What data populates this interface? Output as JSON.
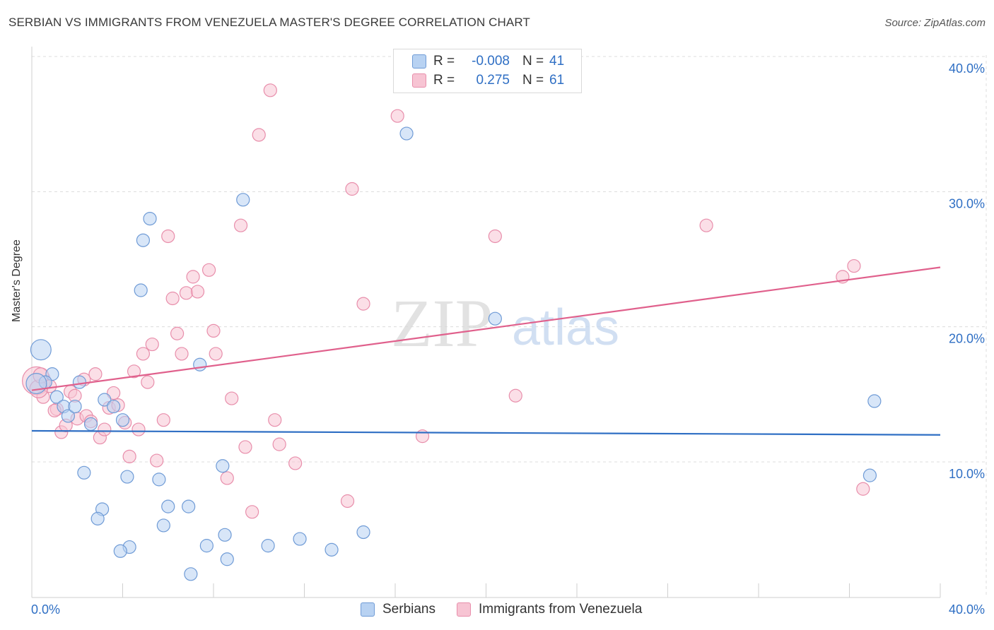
{
  "header": {
    "title": "SERBIAN VS IMMIGRANTS FROM VENEZUELA MASTER'S DEGREE CORRELATION CHART",
    "source": "Source: ZipAtlas.com"
  },
  "legend": {
    "rows": [
      {
        "r_label": "R =",
        "r_value": "-0.008",
        "n_label": "N =",
        "n_value": "41"
      },
      {
        "r_label": "R =",
        "r_value": "0.275",
        "n_label": "N =",
        "n_value": "61"
      }
    ]
  },
  "bottom_legend": {
    "series1": "Serbians",
    "series2": "Immigrants from Venezuela"
  },
  "watermark": {
    "zip": "ZIP",
    "atlas": "atlas"
  },
  "colors": {
    "blue_fill": "#b8d2f2",
    "blue_stroke": "#6f9bd6",
    "blue_line": "#2f6fc4",
    "pink_fill": "#f7c4d3",
    "pink_stroke": "#e88eab",
    "pink_line": "#e0608c",
    "tick_text": "#2f6fc4",
    "grid": "#dcdcdc"
  },
  "chart_data": {
    "type": "scatter",
    "title": "SERBIAN VS IMMIGRANTS FROM VENEZUELA MASTER'S DEGREE CORRELATION CHART",
    "xlabel": "",
    "ylabel": "Master's Degree",
    "xlim": [
      0,
      40
    ],
    "ylim": [
      0,
      40
    ],
    "x_tick_labels": [
      "0.0%",
      "40.0%"
    ],
    "y_ticks": [
      10,
      20,
      30,
      40
    ],
    "y_tick_labels": [
      "10.0%",
      "20.0%",
      "30.0%",
      "40.0%"
    ],
    "grid": true,
    "legend_position": "top-center",
    "series": [
      {
        "name": "Serbians",
        "color": "blue",
        "trend": {
          "x": [
            0,
            40
          ],
          "y": [
            12.3,
            12.0
          ]
        },
        "points": [
          [
            0.4,
            18.3,
            1.6
          ],
          [
            0.9,
            16.5,
            1
          ],
          [
            0.6,
            15.9,
            1
          ],
          [
            1.1,
            14.8,
            1
          ],
          [
            1.4,
            14.1,
            1
          ],
          [
            1.6,
            13.4,
            1
          ],
          [
            1.9,
            14.1,
            1
          ],
          [
            2.1,
            15.9,
            1
          ],
          [
            2.6,
            12.8,
            1
          ],
          [
            3.2,
            14.6,
            1
          ],
          [
            3.6,
            14.1,
            1
          ],
          [
            4.0,
            13.1,
            1
          ],
          [
            2.3,
            9.2,
            1
          ],
          [
            4.2,
            8.9,
            1
          ],
          [
            5.6,
            8.7,
            1
          ],
          [
            3.1,
            6.5,
            1
          ],
          [
            2.9,
            5.8,
            1
          ],
          [
            6.0,
            6.7,
            1
          ],
          [
            5.8,
            5.3,
            1
          ],
          [
            4.3,
            3.7,
            1
          ],
          [
            3.9,
            3.4,
            1
          ],
          [
            6.9,
            6.7,
            1
          ],
          [
            7.7,
            3.8,
            1
          ],
          [
            8.5,
            4.6,
            1
          ],
          [
            8.6,
            2.8,
            1
          ],
          [
            7.0,
            1.7,
            1
          ],
          [
            10.4,
            3.8,
            1
          ],
          [
            11.8,
            4.3,
            1
          ],
          [
            13.2,
            3.5,
            1
          ],
          [
            14.6,
            4.8,
            1
          ],
          [
            8.4,
            9.7,
            1
          ],
          [
            7.4,
            17.2,
            1
          ],
          [
            4.8,
            22.7,
            1
          ],
          [
            4.9,
            26.4,
            1
          ],
          [
            5.2,
            28.0,
            1
          ],
          [
            9.3,
            29.4,
            1
          ],
          [
            16.5,
            34.3,
            1
          ],
          [
            20.4,
            20.6,
            1
          ],
          [
            37.1,
            14.5,
            1
          ],
          [
            36.9,
            9.0,
            1
          ],
          [
            0.2,
            15.8,
            1.6
          ]
        ]
      },
      {
        "name": "Immigrants from Venezuela",
        "color": "pink",
        "trend": {
          "x": [
            0,
            40
          ],
          "y": [
            15.3,
            24.4
          ]
        },
        "points": [
          [
            0.2,
            16.0,
            2.2
          ],
          [
            0.5,
            14.8,
            1
          ],
          [
            0.8,
            15.6,
            1
          ],
          [
            1.1,
            13.9,
            1
          ],
          [
            1.3,
            12.2,
            1
          ],
          [
            1.5,
            12.7,
            1
          ],
          [
            1.7,
            15.2,
            1
          ],
          [
            1.9,
            14.9,
            1
          ],
          [
            2.0,
            13.2,
            1
          ],
          [
            2.3,
            16.1,
            1
          ],
          [
            2.4,
            13.4,
            1
          ],
          [
            2.6,
            13.0,
            1
          ],
          [
            2.8,
            16.5,
            1
          ],
          [
            3.0,
            11.8,
            1
          ],
          [
            3.2,
            12.4,
            1
          ],
          [
            3.4,
            14.0,
            1
          ],
          [
            3.6,
            15.1,
            1
          ],
          [
            3.8,
            14.2,
            1
          ],
          [
            4.1,
            12.9,
            1
          ],
          [
            4.3,
            10.4,
            1
          ],
          [
            4.5,
            16.7,
            1
          ],
          [
            4.7,
            12.4,
            1
          ],
          [
            4.9,
            18.0,
            1
          ],
          [
            5.1,
            15.9,
            1
          ],
          [
            5.3,
            18.7,
            1
          ],
          [
            5.5,
            10.1,
            1
          ],
          [
            5.8,
            13.1,
            1
          ],
          [
            6.0,
            26.7,
            1
          ],
          [
            6.2,
            22.1,
            1
          ],
          [
            6.4,
            19.5,
            1
          ],
          [
            6.6,
            18.0,
            1
          ],
          [
            6.8,
            22.5,
            1
          ],
          [
            7.1,
            23.7,
            1
          ],
          [
            7.3,
            22.6,
            1
          ],
          [
            7.8,
            24.2,
            1
          ],
          [
            8.0,
            19.7,
            1
          ],
          [
            8.1,
            18.0,
            1
          ],
          [
            8.6,
            8.8,
            1
          ],
          [
            8.8,
            14.7,
            1
          ],
          [
            9.2,
            27.5,
            1
          ],
          [
            9.4,
            11.1,
            1
          ],
          [
            9.7,
            6.3,
            1
          ],
          [
            10.0,
            34.2,
            1
          ],
          [
            10.5,
            37.5,
            1
          ],
          [
            10.7,
            13.1,
            1
          ],
          [
            10.9,
            11.3,
            1
          ],
          [
            11.6,
            9.9,
            1
          ],
          [
            13.9,
            7.1,
            1
          ],
          [
            14.1,
            30.2,
            1
          ],
          [
            14.6,
            21.7,
            1
          ],
          [
            16.1,
            35.6,
            1
          ],
          [
            17.2,
            11.9,
            1
          ],
          [
            20.4,
            26.7,
            1
          ],
          [
            21.3,
            14.9,
            1
          ],
          [
            29.7,
            27.5,
            1
          ],
          [
            35.7,
            23.7,
            1
          ],
          [
            36.2,
            24.5,
            1
          ],
          [
            36.6,
            8.0,
            1
          ],
          [
            0.3,
            15.4,
            1.4
          ],
          [
            0.4,
            16.4,
            1.2
          ],
          [
            1.0,
            13.8,
            1
          ]
        ]
      }
    ]
  }
}
